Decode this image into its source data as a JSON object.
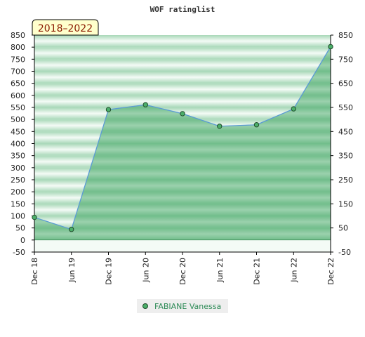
{
  "chart_data": {
    "type": "area",
    "title": "WOF ratinglist",
    "badge": "2018–2022",
    "categories": [
      "Dec 18",
      "Jun 19",
      "Dec 19",
      "Jun 20",
      "Dec 20",
      "Jun 21",
      "Dec 21",
      "Jun 22",
      "Dec 22"
    ],
    "series": [
      {
        "name": "FABIANE Vanessa",
        "values": [
          94,
          44,
          541,
          561,
          524,
          472,
          478,
          544,
          802
        ]
      }
    ],
    "ylim": [
      -50,
      850
    ],
    "left_ticks": [
      "850",
      "800",
      "750",
      "700",
      "650",
      "600",
      "550",
      "500",
      "450",
      "400",
      "350",
      "300",
      "250",
      "200",
      "150",
      "100",
      "50",
      "0",
      "-50"
    ],
    "left_tick_values": [
      850,
      800,
      750,
      700,
      650,
      600,
      550,
      500,
      450,
      400,
      350,
      300,
      250,
      200,
      150,
      100,
      50,
      0,
      -50
    ],
    "right_ticks": [
      "850",
      "750",
      "650",
      "550",
      "450",
      "350",
      "250",
      "150",
      "50",
      "-50"
    ],
    "right_tick_values": [
      850,
      750,
      650,
      550,
      450,
      350,
      250,
      150,
      50,
      -50
    ],
    "grid": "horizontal bands",
    "legend_position": "bottom",
    "colors": {
      "line": "#5b9bd5",
      "area": "#2e9e54",
      "marker": "#4caf6a",
      "legend_text": "#2e8b57",
      "badge_bg": "#ffffcc",
      "badge_text": "#8b1a00"
    }
  }
}
